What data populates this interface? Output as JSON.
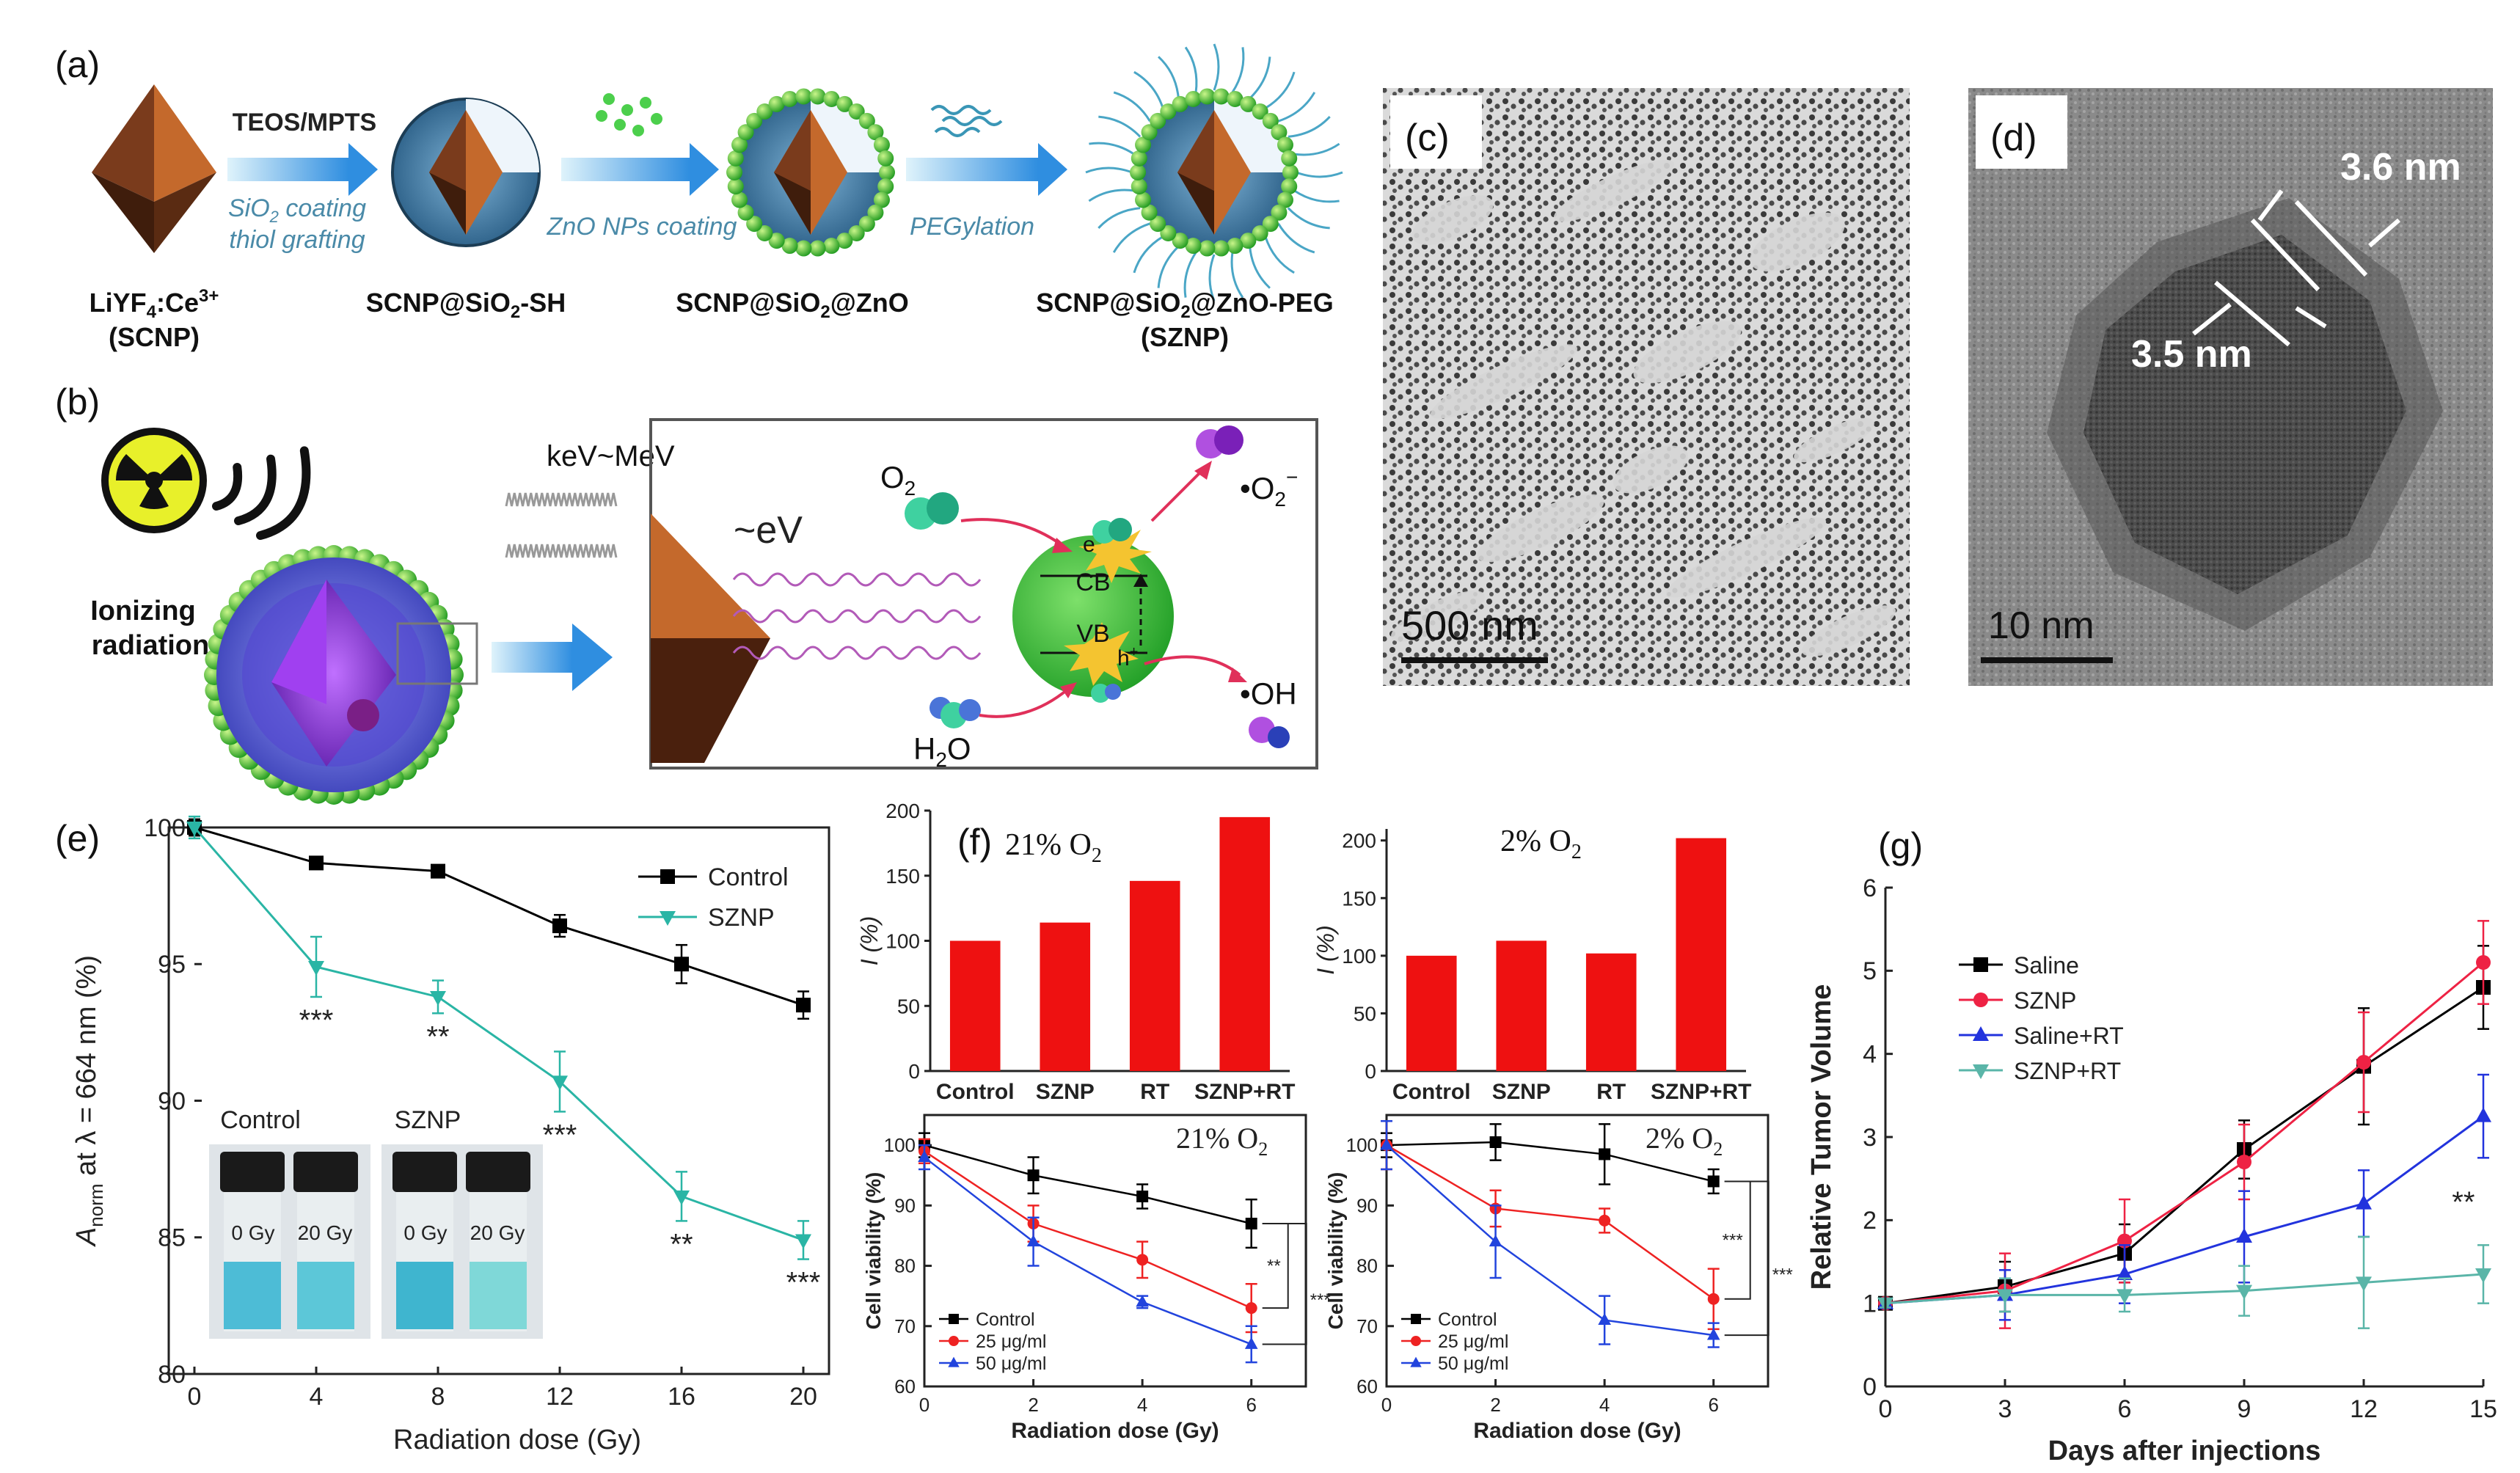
{
  "panels": {
    "a": {
      "label": "(a)",
      "arrow1_top": "TEOS/MPTS",
      "arrow1_bottom_1": "SiO",
      "arrow1_bottom_sub": "2",
      "arrow1_bottom_2": " coating",
      "arrow1_bottom_3": "thiol grafting",
      "arrow2": "ZnO NPs coating",
      "arrow3": "PEGylation",
      "step1_main": "LiYF",
      "step1_sub": "4",
      "step1_rest": ":Ce",
      "step1_sup": "3+",
      "step1_name": "(SCNP)",
      "step2_a": "SCNP@SiO",
      "step2_sub": "2",
      "step2_b": "-SH",
      "step3_a": "SCNP@SiO",
      "step3_sub": "2",
      "step3_b": "@ZnO",
      "step4_a": "SCNP@SiO",
      "step4_sub": "2",
      "step4_b": "@ZnO-PEG",
      "step4_name": "(SZNP)"
    },
    "b": {
      "label": "(b)",
      "ionizing_1": "Ionizing",
      "ionizing_2": "radiation",
      "energy": "keV~MeV",
      "ev": "~eV",
      "o2": "O",
      "o2_sub": "2",
      "superoxide": "•O",
      "superoxide_sub": "2",
      "superoxide_sup": "−",
      "cb": "CB",
      "vb": "VB",
      "electron": "e",
      "electron_sup": "−",
      "hole": "h",
      "hole_sup": "+",
      "hydroxyl": "•OH",
      "water_a": "H",
      "water_sub": "2",
      "water_b": "O"
    },
    "c": {
      "label": "(c)",
      "scale": "500 nm"
    },
    "d": {
      "label": "(d)",
      "scale": "10 nm",
      "dim1": "3.6 nm",
      "dim2": "3.5 nm"
    },
    "f": {
      "label": "(f)",
      "title_left": "21% O",
      "title_right": "2% O",
      "sub": "2"
    },
    "g": {
      "label": "(g)"
    },
    "e_insets": {
      "control": "Control",
      "sznp": "SZNP",
      "gy0": "0 Gy",
      "gy20": "20 Gy"
    }
  },
  "chart_data": [
    {
      "id": "e",
      "type": "line",
      "label": "(e)",
      "xlabel": "Radiation dose (Gy)",
      "ylabel_pre": "A",
      "ylabel_sub": "norm",
      "ylabel_post": " at λ = 664 nm (%)",
      "x": [
        0,
        4,
        8,
        12,
        16,
        20
      ],
      "xlim": [
        0,
        20
      ],
      "ylim": [
        80,
        100
      ],
      "xticks": [
        "0",
        "4",
        "8",
        "12",
        "16",
        "20"
      ],
      "yticks": [
        "80",
        "85",
        "90",
        "95",
        "100"
      ],
      "series": [
        {
          "name": "Control",
          "color": "#000000",
          "marker": "square",
          "values": [
            100.0,
            98.7,
            98.4,
            96.4,
            95.0,
            93.5
          ],
          "err": [
            0.3,
            0.2,
            0.2,
            0.4,
            0.7,
            0.5
          ]
        },
        {
          "name": "SZNP",
          "color": "#2ab5a5",
          "marker": "triangle-down",
          "values": [
            100.0,
            94.9,
            93.8,
            90.7,
            86.5,
            84.9
          ],
          "err": [
            0.4,
            1.1,
            0.6,
            1.1,
            0.9,
            0.7
          ]
        }
      ],
      "annotations": [
        "***",
        "**",
        "***",
        "**",
        "***"
      ]
    },
    {
      "id": "f1",
      "type": "bar",
      "categories": [
        "Control",
        "SZNP",
        "RT",
        "SZNP+RT"
      ],
      "values": [
        100,
        114,
        146,
        195
      ],
      "ylabel": "I (%)",
      "ylim": [
        0,
        200
      ],
      "yticks": [
        "0",
        "50",
        "100",
        "150",
        "200"
      ],
      "color": "#ee1111"
    },
    {
      "id": "f2",
      "type": "bar",
      "categories": [
        "Control",
        "SZNP",
        "RT",
        "SZNP+RT"
      ],
      "values": [
        100,
        113,
        102,
        202
      ],
      "ylabel": "I (%)",
      "ylim": [
        0,
        210
      ],
      "yticks": [
        "0",
        "50",
        "100",
        "150",
        "200"
      ],
      "color": "#ee1111"
    },
    {
      "id": "f3",
      "type": "line",
      "title": "21% O",
      "title_sub": "2",
      "xlabel": "Radiation dose (Gy)",
      "ylabel": "Cell viability (%)",
      "x": [
        0,
        2,
        4,
        6
      ],
      "xlim": [
        0,
        7
      ],
      "ylim": [
        60,
        105
      ],
      "xticks": [
        "0",
        "2",
        "4",
        "6"
      ],
      "yticks": [
        "60",
        "70",
        "80",
        "90",
        "100"
      ],
      "series": [
        {
          "name": "Control",
          "color": "#000000",
          "marker": "square",
          "values": [
            100,
            95,
            91.5,
            87
          ],
          "err": [
            2,
            3,
            2,
            4
          ]
        },
        {
          "name": "25 μg/ml",
          "color": "#ee2222",
          "marker": "circle",
          "values": [
            99,
            87,
            81,
            73
          ],
          "err": [
            2,
            3,
            3,
            4
          ]
        },
        {
          "name": "50 μg/ml",
          "color": "#2244dd",
          "marker": "triangle",
          "values": [
            98,
            84,
            74,
            67
          ],
          "err": [
            2,
            4,
            1,
            3
          ]
        }
      ],
      "annotations": [
        "**",
        "***"
      ]
    },
    {
      "id": "f4",
      "type": "line",
      "title": "2% O",
      "title_sub": "2",
      "xlabel": "Radiation dose (Gy)",
      "ylabel": "Cell viability (%)",
      "x": [
        0,
        2,
        4,
        6
      ],
      "xlim": [
        0,
        7
      ],
      "ylim": [
        60,
        105
      ],
      "xticks": [
        "0",
        "2",
        "4",
        "6"
      ],
      "yticks": [
        "60",
        "70",
        "80",
        "90",
        "100"
      ],
      "series": [
        {
          "name": "Control",
          "color": "#000000",
          "marker": "square",
          "values": [
            100,
            100.5,
            98.5,
            94
          ],
          "err": [
            2,
            3,
            5,
            2
          ]
        },
        {
          "name": "25 μg/ml",
          "color": "#ee2222",
          "marker": "circle",
          "values": [
            100,
            89.5,
            87.5,
            74.5
          ],
          "err": [
            4,
            3,
            2,
            5
          ]
        },
        {
          "name": "50 μg/ml",
          "color": "#2244dd",
          "marker": "triangle",
          "values": [
            100,
            84,
            71,
            68.5
          ],
          "err": [
            4,
            6,
            4,
            2
          ]
        }
      ],
      "annotations": [
        "***",
        "***"
      ]
    },
    {
      "id": "g",
      "type": "line",
      "xlabel": "Days after injections",
      "ylabel": "Relative Tumor Volume",
      "x": [
        0,
        3,
        6,
        9,
        12,
        15
      ],
      "xlim": [
        0,
        15
      ],
      "ylim": [
        0,
        6
      ],
      "xticks": [
        "0",
        "3",
        "6",
        "9",
        "12",
        "15"
      ],
      "yticks": [
        "0",
        "1",
        "2",
        "3",
        "4",
        "5",
        "6"
      ],
      "series": [
        {
          "name": "Saline",
          "color": "#000000",
          "marker": "square",
          "values": [
            1.0,
            1.2,
            1.6,
            2.85,
            3.85,
            4.8
          ],
          "err": [
            0.05,
            0.3,
            0.35,
            0.35,
            0.7,
            0.5
          ]
        },
        {
          "name": "SZNP",
          "color": "#ee2244",
          "marker": "circle",
          "values": [
            1.0,
            1.15,
            1.75,
            2.7,
            3.9,
            5.1
          ],
          "err": [
            0.05,
            0.45,
            0.5,
            0.45,
            0.6,
            0.5
          ]
        },
        {
          "name": "Saline+RT",
          "color": "#2233dd",
          "marker": "triangle",
          "values": [
            1.0,
            1.1,
            1.35,
            1.8,
            2.2,
            3.25
          ],
          "err": [
            0.05,
            0.3,
            0.35,
            0.55,
            0.4,
            0.5
          ]
        },
        {
          "name": "SZNP+RT",
          "color": "#5ab5a8",
          "marker": "triangle-down",
          "values": [
            1.0,
            1.1,
            1.1,
            1.15,
            1.25,
            1.35
          ],
          "err": [
            0.05,
            0.2,
            0.2,
            0.3,
            0.55,
            0.35
          ]
        }
      ],
      "annotations": [
        "**"
      ]
    }
  ]
}
